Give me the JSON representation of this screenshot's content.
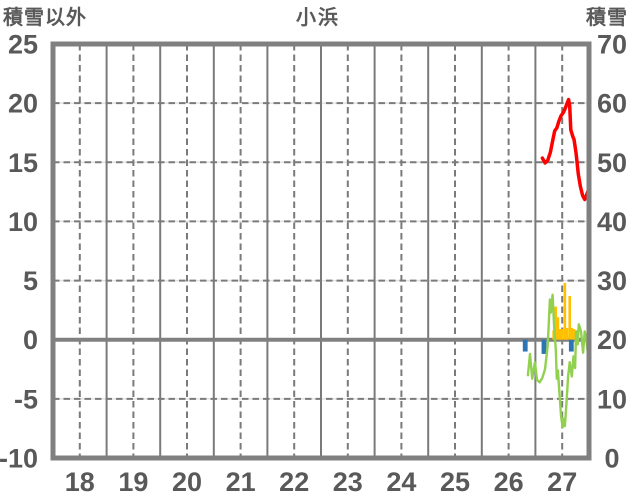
{
  "header": {
    "left_axis_label": "積雪以外",
    "title": "小浜",
    "right_axis_label": "積雪"
  },
  "chart_data": {
    "type": "line+bar",
    "title": "小浜",
    "x_axis": {
      "range": [
        18,
        28
      ],
      "tick_labels": [
        "18",
        "19",
        "20",
        "21",
        "22",
        "23",
        "24",
        "25",
        "26",
        "27"
      ],
      "gridlines": "solid at day boundaries, dashed at half-days"
    },
    "left_axis": {
      "title": "積雪以外",
      "range": [
        -10,
        25
      ],
      "ticks": [
        "25",
        "20",
        "15",
        "10",
        "5",
        "0",
        "-5",
        "-10"
      ]
    },
    "right_axis": {
      "title": "積雪",
      "range": [
        0,
        70
      ],
      "ticks": [
        "70",
        "60",
        "50",
        "40",
        "30",
        "20",
        "10",
        "0"
      ]
    },
    "colors": {
      "red_line": "#FF0000",
      "green_line": "#92D050",
      "orange_bar": "#FFC000",
      "blue_bar": "#2E75B6",
      "grid_dark": "#7A7A7A",
      "grid_light": "#E2E2E2",
      "border": "#808080",
      "zero_line": "#808080",
      "text": "#595959",
      "background": "#FFFFFF"
    },
    "series": [
      {
        "name": "snow-depth-line-red",
        "type": "line",
        "axis": "right",
        "color": "#FF0000",
        "stroke_width": 3.5,
        "points": [
          [
            27.13,
            50.7
          ],
          [
            27.18,
            49.9
          ],
          [
            27.23,
            50.3
          ],
          [
            27.28,
            51.7
          ],
          [
            27.32,
            53.6
          ],
          [
            27.36,
            55.3
          ],
          [
            27.4,
            55.8
          ],
          [
            27.44,
            57.0
          ],
          [
            27.48,
            57.9
          ],
          [
            27.52,
            58.4
          ],
          [
            27.56,
            59.2
          ],
          [
            27.6,
            60.2
          ],
          [
            27.62,
            60.6
          ],
          [
            27.64,
            59.5
          ],
          [
            27.66,
            55.5
          ],
          [
            27.7,
            54.3
          ],
          [
            27.72,
            53.9
          ],
          [
            27.76,
            51.5
          ],
          [
            27.8,
            48.0
          ],
          [
            27.84,
            45.9
          ],
          [
            27.88,
            44.4
          ],
          [
            27.92,
            43.7
          ],
          [
            27.96,
            44.6
          ],
          [
            28.0,
            45.6
          ]
        ]
      },
      {
        "name": "green-jagged-line",
        "type": "line",
        "axis": "left",
        "color": "#92D050",
        "stroke_width": 2.4,
        "points": [
          [
            26.86,
            -3.0
          ],
          [
            26.9,
            -1.2
          ],
          [
            26.94,
            -3.3
          ],
          [
            26.99,
            -1.9
          ],
          [
            27.03,
            -3.4
          ],
          [
            27.08,
            -3.6
          ],
          [
            27.13,
            -3.2
          ],
          [
            27.18,
            -2.5
          ],
          [
            27.23,
            -0.5
          ],
          [
            27.27,
            3.4
          ],
          [
            27.29,
            2.3
          ],
          [
            27.32,
            3.8
          ],
          [
            27.35,
            1.0
          ],
          [
            27.38,
            -0.8
          ],
          [
            27.4,
            -3.3
          ],
          [
            27.42,
            -2.6
          ],
          [
            27.45,
            -4.6
          ],
          [
            27.48,
            -6.5
          ],
          [
            27.51,
            -7.4
          ],
          [
            27.53,
            -6.7
          ],
          [
            27.55,
            -7.3
          ],
          [
            27.58,
            -5.3
          ],
          [
            27.61,
            -3.1
          ],
          [
            27.64,
            -1.9
          ],
          [
            27.68,
            -3.1
          ],
          [
            27.71,
            -1.4
          ],
          [
            27.74,
            -2.4
          ],
          [
            27.76,
            0.7
          ],
          [
            27.79,
            -0.4
          ],
          [
            27.81,
            1.3
          ],
          [
            27.85,
            0.7
          ],
          [
            27.89,
            -1.1
          ],
          [
            27.92,
            0.7
          ],
          [
            27.95,
            0.1
          ],
          [
            27.98,
            -1.2
          ]
        ]
      },
      {
        "name": "orange-bars",
        "type": "bar",
        "axis": "left",
        "color": "#FFC000",
        "bar_width_days": 0.048,
        "points": [
          [
            27.34,
            0.8
          ],
          [
            27.38,
            2.8
          ],
          [
            27.42,
            1.9
          ],
          [
            27.46,
            0.9
          ],
          [
            27.5,
            0.9
          ],
          [
            27.55,
            4.8
          ],
          [
            27.59,
            1.0
          ],
          [
            27.64,
            3.7
          ],
          [
            27.68,
            1.0
          ],
          [
            27.72,
            0.9
          ],
          [
            27.76,
            0.8
          ]
        ]
      },
      {
        "name": "blue-bars",
        "type": "bar",
        "axis": "left",
        "color": "#2E75B6",
        "bar_width_days": 0.09,
        "points": [
          [
            26.81,
            -1.0
          ],
          [
            27.16,
            -1.2
          ],
          [
            27.67,
            -1.0
          ]
        ]
      }
    ]
  }
}
